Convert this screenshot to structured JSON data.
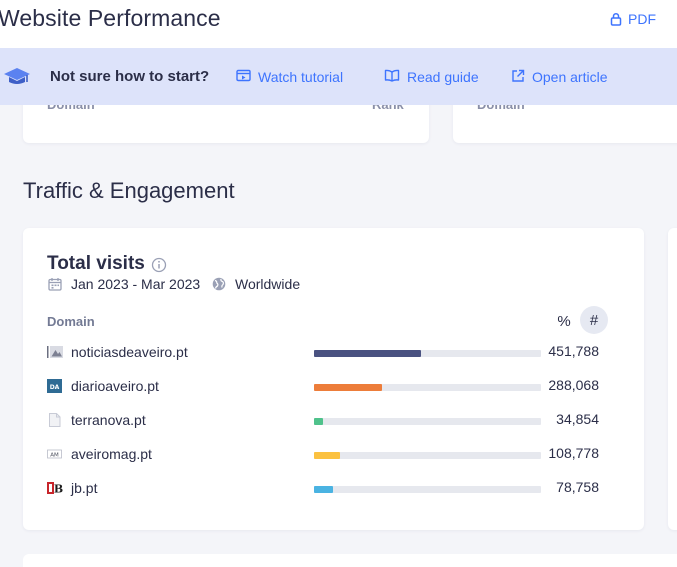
{
  "header": {
    "title": "Website Performance",
    "pdf_label": "PDF"
  },
  "banner": {
    "question": "Not sure how to start?",
    "links": [
      {
        "label": "Watch tutorial",
        "icon": "video-icon"
      },
      {
        "label": "Read guide",
        "icon": "book-icon"
      },
      {
        "label": "Open article",
        "icon": "external-link-icon"
      }
    ]
  },
  "top_cards": {
    "left": {
      "domain_label": "Domain",
      "rank_label": "Rank"
    },
    "right": {
      "domain_label": "Domain"
    }
  },
  "section": {
    "title": "Traffic & Engagement"
  },
  "visits_card": {
    "title": "Total visits",
    "date_range": "Jan 2023 - Mar 2023",
    "region": "Worldwide",
    "column_domain": "Domain",
    "toggle_percent": "%",
    "toggle_number": "#",
    "rows": [
      {
        "domain": "noticiasdeaveiro.pt",
        "value": "451,788",
        "share": 0.47,
        "color": "#4a5281",
        "favicon": "image-icon"
      },
      {
        "domain": "diarioaveiro.pt",
        "value": "288,068",
        "share": 0.3,
        "color": "#ed7d3a",
        "favicon": "da-logo-icon"
      },
      {
        "domain": "terranova.pt",
        "value": "34,854",
        "share": 0.04,
        "color": "#4fc28b",
        "favicon": "page-icon"
      },
      {
        "domain": "aveiromag.pt",
        "value": "108,778",
        "share": 0.115,
        "color": "#fbc140",
        "favicon": "am-logo-icon"
      },
      {
        "domain": "jb.pt",
        "value": "78,758",
        "share": 0.083,
        "color": "#4ab3e2",
        "favicon": "jb-logo-icon"
      }
    ]
  },
  "colors": {
    "accent": "#3e74fe",
    "banner_bg": "#dde3fa",
    "page_bg": "#f4f5f9",
    "text": "#2b2e48"
  }
}
